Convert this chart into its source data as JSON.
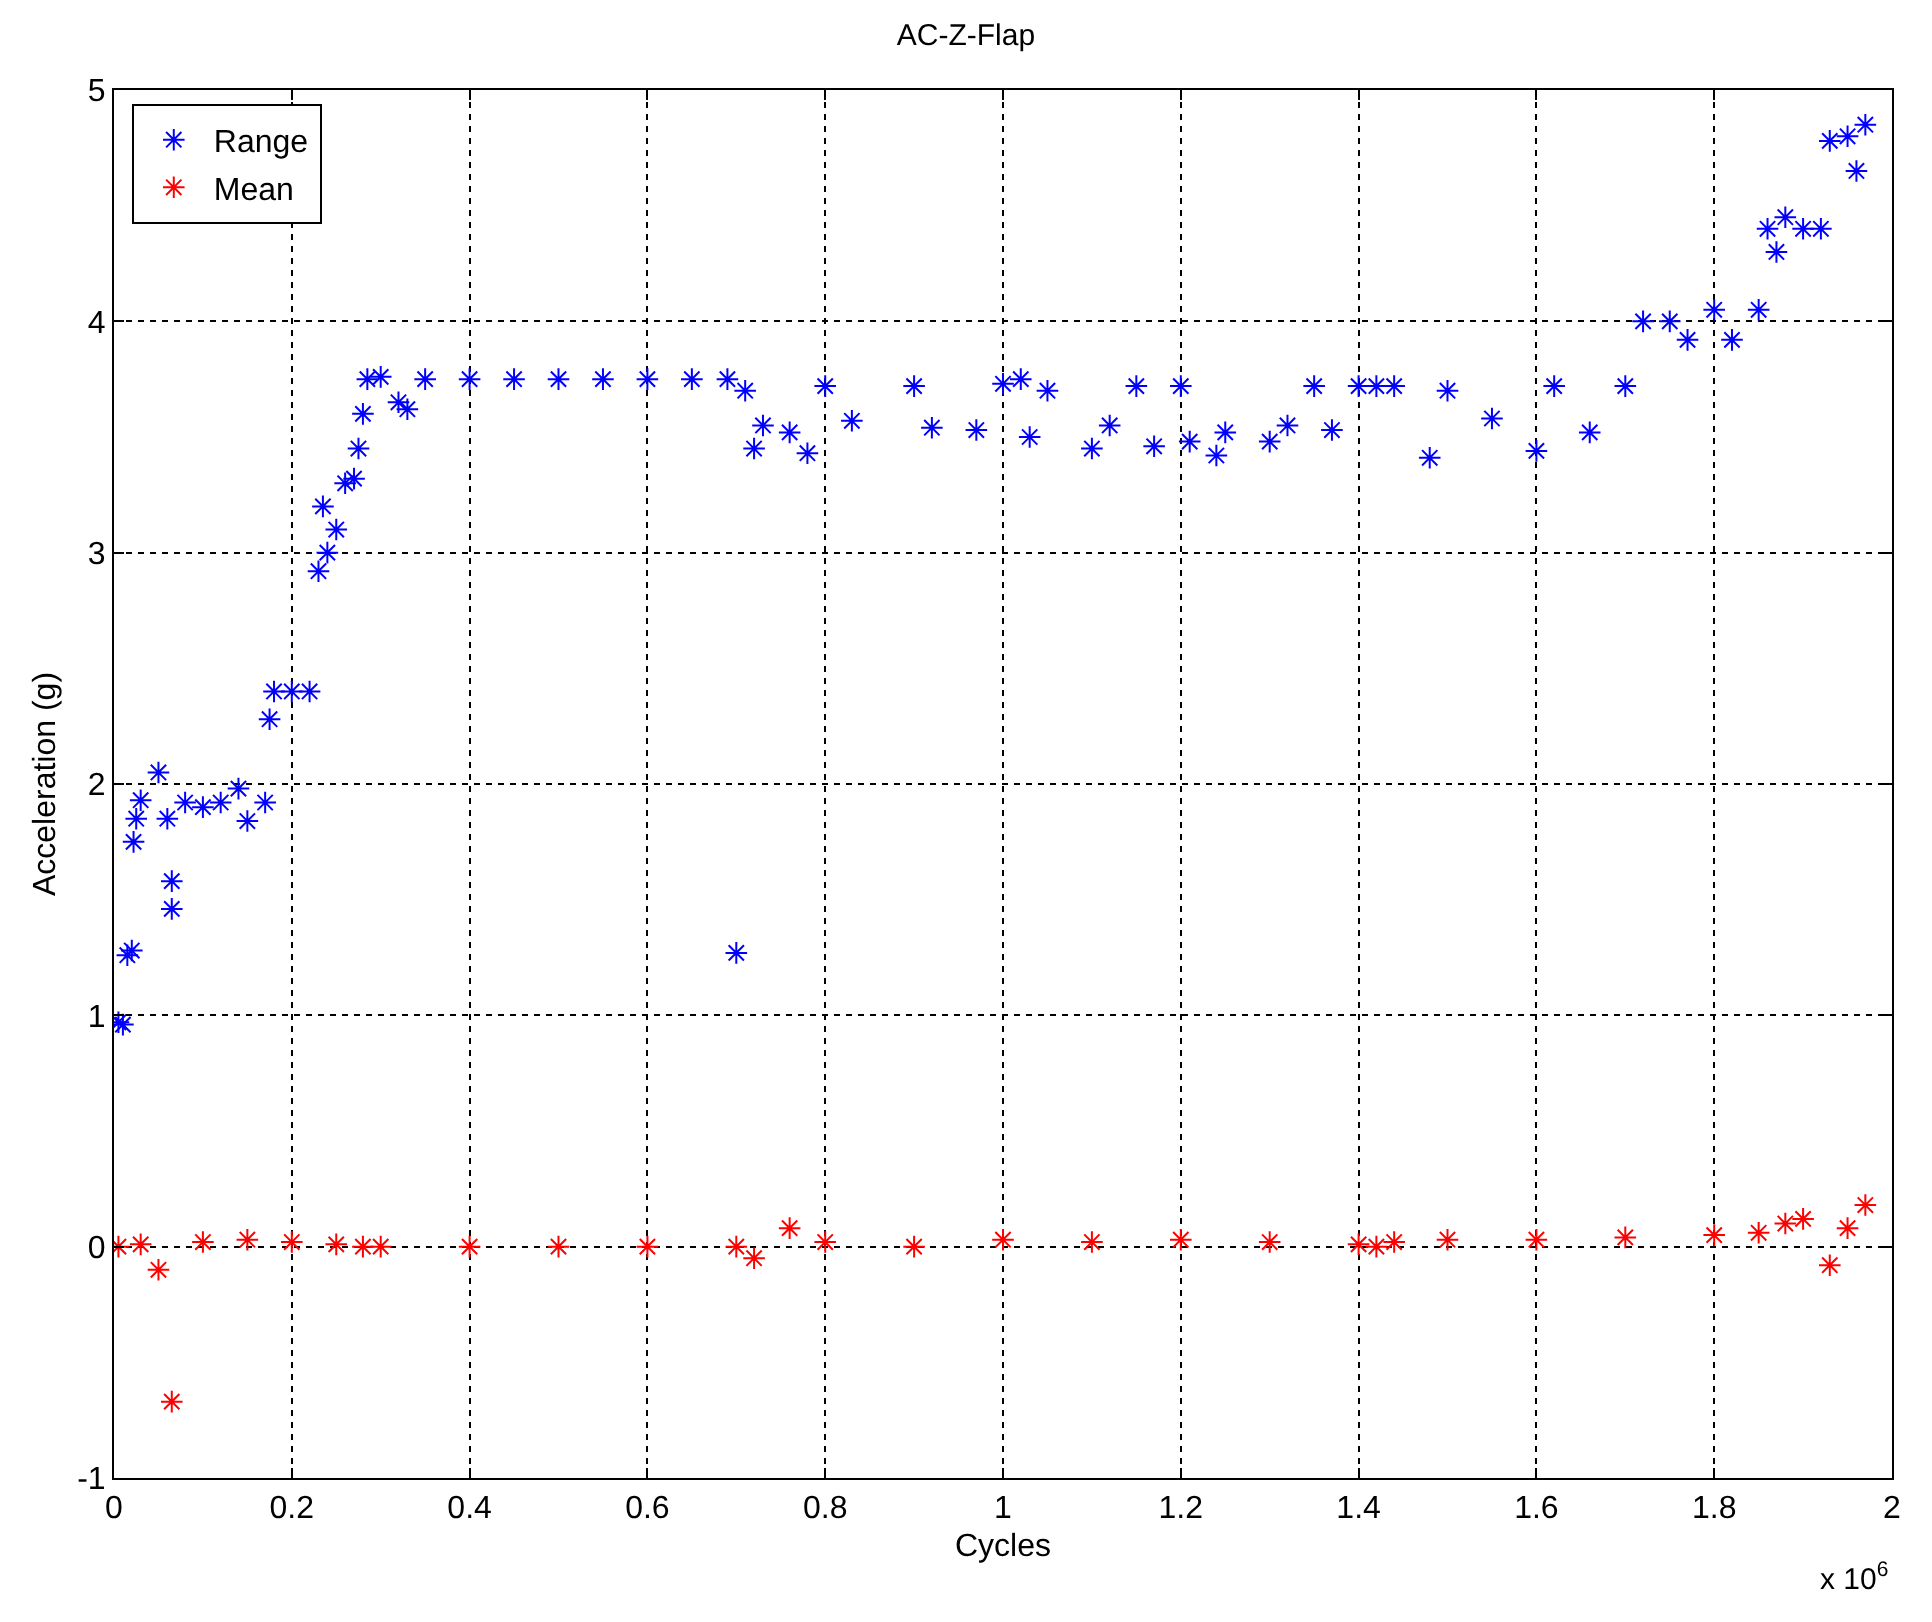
{
  "chart_data": {
    "type": "scatter",
    "title": "AC-Z-Flap",
    "xlabel": "Cycles",
    "ylabel": "Acceleration (g)",
    "annotations": [
      "x 10$^{6}$"
    ],
    "xlim": [
      0,
      2
    ],
    "xticks": [
      0,
      0.2,
      0.4,
      0.6,
      0.8,
      1,
      1.2,
      1.4,
      1.6,
      1.8,
      2
    ],
    "ylim": [
      -1,
      5
    ],
    "yticks": [
      -1,
      0,
      1,
      2,
      3,
      4,
      5
    ],
    "grid": true,
    "legend": "top left",
    "marker": "cross",
    "series": [
      {
        "name": "Range",
        "color": "#0000ff",
        "x": [
          0.005,
          0.01,
          0.015,
          0.02,
          0.022,
          0.025,
          0.03,
          0.05,
          0.06,
          0.065,
          0.065,
          0.08,
          0.1,
          0.12,
          0.14,
          0.15,
          0.17,
          0.175,
          0.18,
          0.2,
          0.22,
          0.23,
          0.235,
          0.24,
          0.25,
          0.26,
          0.27,
          0.275,
          0.28,
          0.285,
          0.3,
          0.32,
          0.33,
          0.35,
          0.4,
          0.45,
          0.5,
          0.55,
          0.6,
          0.65,
          0.69,
          0.7,
          0.71,
          0.72,
          0.73,
          0.76,
          0.78,
          0.8,
          0.83,
          0.9,
          0.92,
          0.97,
          1.0,
          1.02,
          1.03,
          1.05,
          1.1,
          1.12,
          1.15,
          1.17,
          1.2,
          1.21,
          1.24,
          1.25,
          1.3,
          1.32,
          1.35,
          1.37,
          1.4,
          1.42,
          1.44,
          1.48,
          1.5,
          1.55,
          1.6,
          1.62,
          1.66,
          1.7,
          1.72,
          1.75,
          1.77,
          1.8,
          1.82,
          1.85,
          1.86,
          1.87,
          1.88,
          1.9,
          1.92,
          1.93,
          1.95,
          1.96,
          1.97
        ],
        "values": [
          0.97,
          0.96,
          1.26,
          1.28,
          1.75,
          1.85,
          1.93,
          2.05,
          1.85,
          1.58,
          1.46,
          1.92,
          1.9,
          1.92,
          1.98,
          1.84,
          1.92,
          2.28,
          2.4,
          2.4,
          2.4,
          2.92,
          3.2,
          3.0,
          3.1,
          3.3,
          3.32,
          3.45,
          3.6,
          3.75,
          3.76,
          3.65,
          3.62,
          3.75,
          3.75,
          3.75,
          3.75,
          3.75,
          3.75,
          3.75,
          3.75,
          1.27,
          3.7,
          3.45,
          3.55,
          3.52,
          3.43,
          3.72,
          3.57,
          3.72,
          3.54,
          3.53,
          3.73,
          3.75,
          3.5,
          3.7,
          3.45,
          3.55,
          3.72,
          3.46,
          3.72,
          3.48,
          3.42,
          3.52,
          3.48,
          3.55,
          3.72,
          3.53,
          3.72,
          3.72,
          3.72,
          3.41,
          3.7,
          3.58,
          3.44,
          3.72,
          3.52,
          3.72,
          4.0,
          4.0,
          3.92,
          4.05,
          3.92,
          4.05,
          4.4,
          4.3,
          4.45,
          4.4,
          4.4,
          4.78,
          4.8,
          4.65,
          4.85
        ]
      },
      {
        "name": "Mean",
        "color": "#ff0000",
        "x": [
          0.005,
          0.03,
          0.05,
          0.065,
          0.1,
          0.15,
          0.2,
          0.25,
          0.28,
          0.3,
          0.4,
          0.5,
          0.6,
          0.7,
          0.72,
          0.76,
          0.8,
          0.9,
          1.0,
          1.1,
          1.2,
          1.3,
          1.4,
          1.42,
          1.44,
          1.5,
          1.6,
          1.7,
          1.8,
          1.85,
          1.88,
          1.9,
          1.93,
          1.95,
          1.97
        ],
        "values": [
          0.0,
          0.01,
          -0.1,
          -0.67,
          0.02,
          0.03,
          0.02,
          0.01,
          0.0,
          0.0,
          0.0,
          0.0,
          0.0,
          0.0,
          -0.05,
          0.08,
          0.02,
          0.0,
          0.03,
          0.02,
          0.03,
          0.02,
          0.01,
          0.0,
          0.02,
          0.03,
          0.03,
          0.04,
          0.05,
          0.06,
          0.1,
          0.12,
          -0.08,
          0.08,
          0.18
        ]
      }
    ]
  }
}
